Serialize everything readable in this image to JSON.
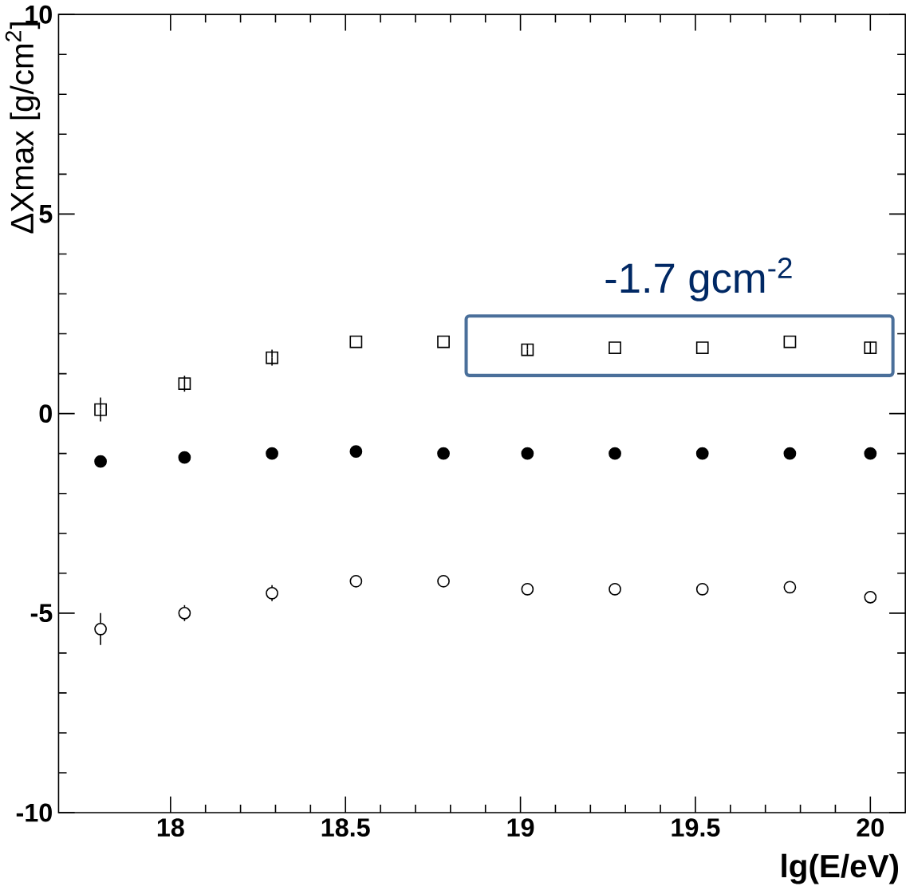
{
  "chart_data": {
    "type": "scatter",
    "xlabel": "lg(E/eV)",
    "ylabel": "ΔXmax [g/cm$^{2}$]",
    "x": [
      17.8,
      18.04,
      18.29,
      18.53,
      18.78,
      19.02,
      19.27,
      19.52,
      19.77,
      20.0
    ],
    "series": [
      {
        "color": "#000000",
        "marker": "square",
        "values": [
          0.1,
          0.75,
          1.4,
          1.8,
          1.8,
          1.6,
          1.65,
          1.65,
          1.8,
          1.65
        ],
        "errors": [
          0.3,
          0.2,
          0.2,
          null,
          null,
          0.15,
          null,
          null,
          null,
          0.15
        ]
      },
      {
        "color": "#000000",
        "marker": "circle",
        "values": [
          -1.2,
          -1.1,
          -1.0,
          -0.95,
          -1.0,
          -1.0,
          -1.0,
          -1.0,
          -1.0,
          -1.0
        ]
      },
      {
        "color": "#000000",
        "marker": "circle",
        "values": [
          -5.4,
          -5.0,
          -4.5,
          -4.2,
          -4.2,
          -4.4,
          -4.4,
          -4.4,
          -4.35,
          -4.6
        ],
        "errors": [
          0.4,
          0.2,
          0.2,
          null,
          null,
          null,
          null,
          null,
          null,
          0.15
        ]
      }
    ],
    "xlim": [
      17.68,
      20.1
    ],
    "ylim": [
      -10,
      10
    ],
    "xticks": [
      18,
      18.5,
      19,
      19.5,
      20
    ],
    "yticks": [
      -10,
      -5,
      0,
      5,
      10
    ],
    "annotations": [
      {
        "text": "-1.7 gcm$^{-2}$",
        "x": 19.02,
        "y": 1.7
      }
    ]
  }
}
